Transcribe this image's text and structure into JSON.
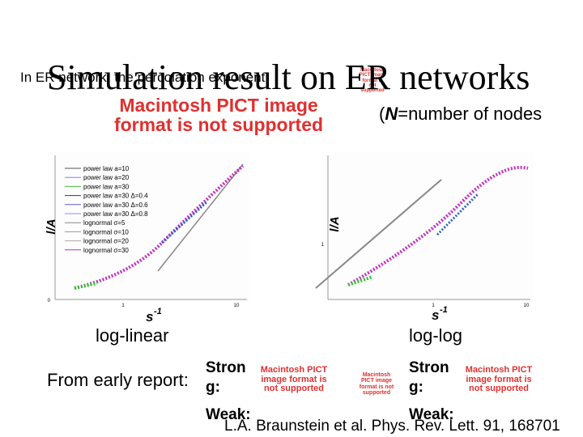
{
  "slide": {
    "title": "Simulation result on ER networks",
    "subtitle": "In ER network, the percolation exponent",
    "placeholder": "Macintosh PICT image format is not supported",
    "note": {
      "open": "(",
      "symbol": "N",
      "rest": "=number of nodes"
    },
    "left_plot": {
      "legend": [
        "power law  a=10",
        "power law  a=20",
        "power law  a=30",
        "power law  a=30  Δ=0.4",
        "power law  a=30  Δ=0.6",
        "power law  a=30  Δ=0.8",
        "lognormal  σ=5",
        "lognormal  σ=10",
        "lognormal  σ=20",
        "lognormal  σ=30"
      ],
      "y_label": "l/A",
      "x_label": "s",
      "x_label_exp": "-1",
      "y_ticks": [
        "0"
      ],
      "x_ticks": [
        "1",
        "10"
      ],
      "caption": "log-linear"
    },
    "right_plot": {
      "y_label": "l/A",
      "x_label": "s",
      "x_label_exp": "-1",
      "y_ticks": [
        "1"
      ],
      "x_ticks": [
        "1",
        "10"
      ],
      "caption": "log-log"
    },
    "early_report": "From early report:",
    "strong": "Strong:",
    "weak": "Weak:",
    "reference": "L.A. Braunstein et al. Phys. Rev. Lett. 91, 168701"
  }
}
